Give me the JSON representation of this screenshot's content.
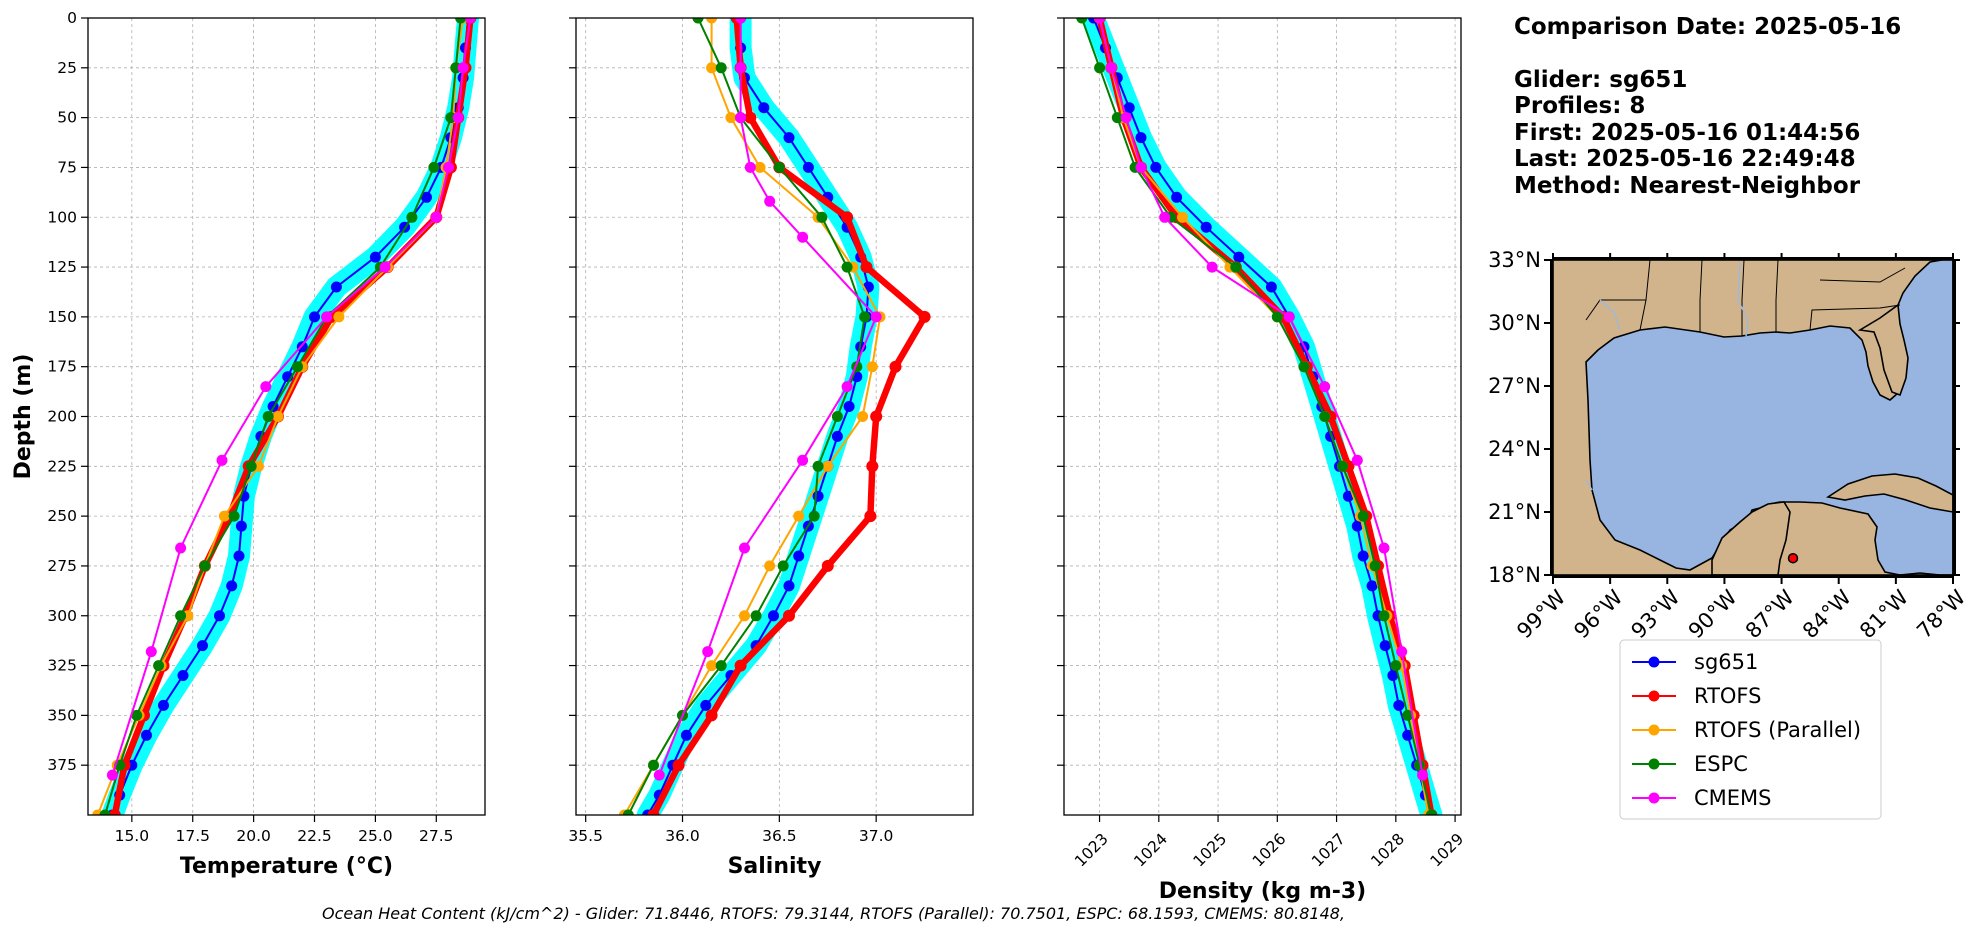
{
  "info": {
    "comparison_date": "Comparison Date: 2025-05-16",
    "glider": "Glider: sg651",
    "profiles": "Profiles: 8",
    "first": "First: 2025-05-16 01:44:56",
    "last": "Last: 2025-05-16 22:49:48",
    "method": "Method: Nearest-Neighbor"
  },
  "footer": "Ocean Heat Content (kJ/cm^2) - Glider: 71.8446,  RTOFS: 79.3144,  RTOFS (Parallel): 70.7501,  ESPC: 68.1593,  CMEMS: 80.8148,",
  "legend": [
    "sg651",
    "RTOFS",
    "RTOFS (Parallel)",
    "ESPC",
    "CMEMS"
  ],
  "colors": {
    "sg651": "#0000ff",
    "sg651_band": "#00ffff",
    "RTOFS": "#ff0000",
    "RTOFS (Parallel)": "#ffa500",
    "ESPC": "#008000",
    "CMEMS": "#ff00ff",
    "land": "#d2b48c",
    "ocean": "#98b4e0"
  },
  "map": {
    "lat_ticks": [
      "33°N",
      "30°N",
      "27°N",
      "24°N",
      "21°N",
      "18°N"
    ],
    "lon_ticks": [
      "99°W",
      "96°W",
      "93°W",
      "90°W",
      "87°W",
      "84°W",
      "81°W",
      "78°W"
    ],
    "glider_position": {
      "lon": -86.4,
      "lat": 18.8
    }
  },
  "chart_data": [
    {
      "type": "line",
      "xlabel": "Temperature (°C)",
      "ylabel": "Depth (m)",
      "xlim": [
        13.2,
        29.5
      ],
      "ylim": [
        400,
        0
      ],
      "xticks": [
        "15.0",
        "17.5",
        "20.0",
        "22.5",
        "25.0",
        "27.5"
      ],
      "yticks": [
        "0",
        "25",
        "50",
        "75",
        "100",
        "125",
        "150",
        "175",
        "200",
        "225",
        "250",
        "275",
        "300",
        "325",
        "350",
        "375"
      ],
      "grid": true,
      "series": [
        {
          "name": "sg651",
          "depth": [
            0,
            15,
            30,
            45,
            60,
            75,
            90,
            105,
            120,
            135,
            150,
            165,
            180,
            195,
            210,
            225,
            240,
            255,
            270,
            285,
            300,
            315,
            330,
            345,
            360,
            375,
            390,
            400
          ],
          "values": [
            28.8,
            28.7,
            28.6,
            28.4,
            28.1,
            27.7,
            27.1,
            26.2,
            25.0,
            23.4,
            22.5,
            22.0,
            21.4,
            20.8,
            20.3,
            19.9,
            19.6,
            19.5,
            19.4,
            19.1,
            18.6,
            17.9,
            17.1,
            16.3,
            15.6,
            15.0,
            14.5,
            14.2
          ]
        },
        {
          "name": "RTOFS",
          "depth": [
            0,
            25,
            50,
            75,
            100,
            125,
            150,
            175,
            200,
            225,
            250,
            275,
            300,
            325,
            350,
            375,
            400
          ],
          "values": [
            28.9,
            28.7,
            28.4,
            28.1,
            27.5,
            25.5,
            23.2,
            22.0,
            21.0,
            19.8,
            19.0,
            18.0,
            17.2,
            16.3,
            15.5,
            14.7,
            14.3
          ]
        },
        {
          "name": "RTOFS (Parallel)",
          "depth": [
            0,
            25,
            50,
            75,
            100,
            125,
            150,
            175,
            200,
            225,
            250,
            275,
            300,
            325,
            350,
            375,
            400
          ],
          "values": [
            28.6,
            28.3,
            28.2,
            27.9,
            27.5,
            25.5,
            23.5,
            22.0,
            21.0,
            20.2,
            18.8,
            18.0,
            17.3,
            16.2,
            15.3,
            14.4,
            13.6
          ]
        },
        {
          "name": "ESPC",
          "depth": [
            0,
            25,
            50,
            75,
            100,
            125,
            150,
            175,
            200,
            225,
            250,
            275,
            300,
            325,
            350,
            375,
            400
          ],
          "values": [
            28.5,
            28.3,
            28.1,
            27.4,
            26.5,
            25.2,
            23.0,
            21.8,
            20.6,
            19.9,
            19.2,
            18.0,
            17.0,
            16.1,
            15.2,
            14.5,
            13.9
          ]
        },
        {
          "name": "CMEMS",
          "depth": [
            0,
            25,
            50,
            75,
            100,
            125,
            150,
            185,
            222,
            266,
            318,
            380
          ],
          "values": [
            28.9,
            28.6,
            28.4,
            28.0,
            27.5,
            25.4,
            23.0,
            20.5,
            18.7,
            17.0,
            15.8,
            14.2
          ]
        }
      ]
    },
    {
      "type": "line",
      "xlabel": "Salinity",
      "ylim": [
        400,
        0
      ],
      "xlim": [
        35.45,
        37.5
      ],
      "xticks": [
        "35.5",
        "36.0",
        "36.5",
        "37.0"
      ],
      "grid": true,
      "series": [
        {
          "name": "sg651",
          "depth": [
            0,
            15,
            30,
            45,
            60,
            75,
            90,
            105,
            120,
            135,
            150,
            165,
            180,
            195,
            210,
            225,
            240,
            255,
            270,
            285,
            300,
            315,
            330,
            345,
            360,
            375,
            390,
            400
          ],
          "values": [
            36.3,
            36.3,
            36.32,
            36.42,
            36.55,
            36.65,
            36.75,
            36.85,
            36.92,
            36.96,
            36.95,
            36.92,
            36.9,
            36.86,
            36.8,
            36.75,
            36.7,
            36.65,
            36.6,
            36.55,
            36.47,
            36.38,
            36.25,
            36.12,
            36.02,
            35.95,
            35.88,
            35.82
          ]
        },
        {
          "name": "RTOFS",
          "depth": [
            0,
            25,
            50,
            75,
            100,
            125,
            150,
            175,
            200,
            225,
            250,
            275,
            300,
            325,
            350,
            375,
            400
          ],
          "values": [
            36.28,
            36.3,
            36.35,
            36.5,
            36.85,
            36.95,
            37.25,
            37.1,
            37.0,
            36.98,
            36.97,
            36.75,
            36.55,
            36.3,
            36.15,
            35.98,
            35.85
          ]
        },
        {
          "name": "RTOFS (Parallel)",
          "depth": [
            0,
            25,
            50,
            75,
            100,
            125,
            150,
            175,
            200,
            225,
            250,
            275,
            300,
            325,
            350,
            375,
            400
          ],
          "values": [
            36.15,
            36.15,
            36.25,
            36.4,
            36.7,
            36.88,
            37.02,
            36.98,
            36.93,
            36.75,
            36.6,
            36.45,
            36.32,
            36.15,
            36.0,
            35.85,
            35.7
          ]
        },
        {
          "name": "ESPC",
          "depth": [
            0,
            25,
            50,
            75,
            100,
            125,
            150,
            175,
            200,
            225,
            250,
            275,
            300,
            325,
            350,
            375,
            400
          ],
          "values": [
            36.08,
            36.2,
            36.3,
            36.5,
            36.72,
            36.85,
            36.94,
            36.9,
            36.8,
            36.7,
            36.68,
            36.52,
            36.38,
            36.2,
            36.0,
            35.85,
            35.72
          ]
        },
        {
          "name": "CMEMS",
          "depth": [
            0,
            25,
            50,
            75,
            92,
            110,
            150,
            185,
            222,
            266,
            318,
            380
          ],
          "values": [
            36.3,
            36.3,
            36.3,
            36.35,
            36.45,
            36.62,
            37.0,
            36.85,
            36.62,
            36.32,
            36.13,
            35.88
          ]
        }
      ]
    },
    {
      "type": "line",
      "xlabel": "Density (kg m-3)",
      "ylim": [
        400,
        0
      ],
      "xlim": [
        1022.4,
        1029.1
      ],
      "xticks": [
        "1023",
        "1024",
        "1025",
        "1026",
        "1027",
        "1028",
        "1029"
      ],
      "grid": true,
      "series": [
        {
          "name": "sg651",
          "depth": [
            0,
            15,
            30,
            45,
            60,
            75,
            90,
            105,
            120,
            135,
            150,
            165,
            180,
            195,
            210,
            225,
            240,
            255,
            270,
            285,
            300,
            315,
            330,
            345,
            360,
            375,
            390,
            400
          ],
          "values": [
            1022.9,
            1023.1,
            1023.3,
            1023.5,
            1023.7,
            1023.95,
            1024.3,
            1024.8,
            1025.35,
            1025.9,
            1026.2,
            1026.45,
            1026.6,
            1026.75,
            1026.9,
            1027.05,
            1027.2,
            1027.35,
            1027.45,
            1027.6,
            1027.7,
            1027.82,
            1027.95,
            1028.05,
            1028.2,
            1028.35,
            1028.5,
            1028.6
          ]
        },
        {
          "name": "RTOFS",
          "depth": [
            0,
            25,
            50,
            75,
            100,
            125,
            150,
            175,
            200,
            225,
            250,
            275,
            300,
            325,
            350,
            375,
            400
          ],
          "values": [
            1023.0,
            1023.2,
            1023.4,
            1023.7,
            1024.3,
            1025.3,
            1026.1,
            1026.5,
            1026.9,
            1027.2,
            1027.5,
            1027.7,
            1027.9,
            1028.15,
            1028.3,
            1028.45,
            1028.6
          ]
        },
        {
          "name": "RTOFS (Parallel)",
          "depth": [
            0,
            25,
            50,
            75,
            100,
            125,
            150,
            175,
            200,
            225,
            250,
            275,
            300,
            325,
            350,
            375,
            400
          ],
          "values": [
            1023.0,
            1023.2,
            1023.4,
            1023.7,
            1024.4,
            1025.2,
            1026.0,
            1026.45,
            1026.8,
            1027.1,
            1027.4,
            1027.6,
            1027.85,
            1028.1,
            1028.25,
            1028.4,
            1028.55
          ]
        },
        {
          "name": "ESPC",
          "depth": [
            0,
            25,
            50,
            75,
            100,
            125,
            150,
            175,
            200,
            225,
            250,
            275,
            300,
            325,
            350,
            375,
            400
          ],
          "values": [
            1022.7,
            1023.0,
            1023.3,
            1023.6,
            1024.2,
            1025.3,
            1026.0,
            1026.45,
            1026.8,
            1027.1,
            1027.45,
            1027.65,
            1027.8,
            1028.0,
            1028.2,
            1028.4,
            1028.6
          ]
        },
        {
          "name": "CMEMS",
          "depth": [
            0,
            25,
            50,
            75,
            100,
            125,
            150,
            185,
            222,
            266,
            318,
            380
          ],
          "values": [
            1023.0,
            1023.2,
            1023.45,
            1023.7,
            1024.1,
            1024.9,
            1026.2,
            1026.8,
            1027.35,
            1027.8,
            1028.1,
            1028.45
          ]
        }
      ]
    }
  ]
}
